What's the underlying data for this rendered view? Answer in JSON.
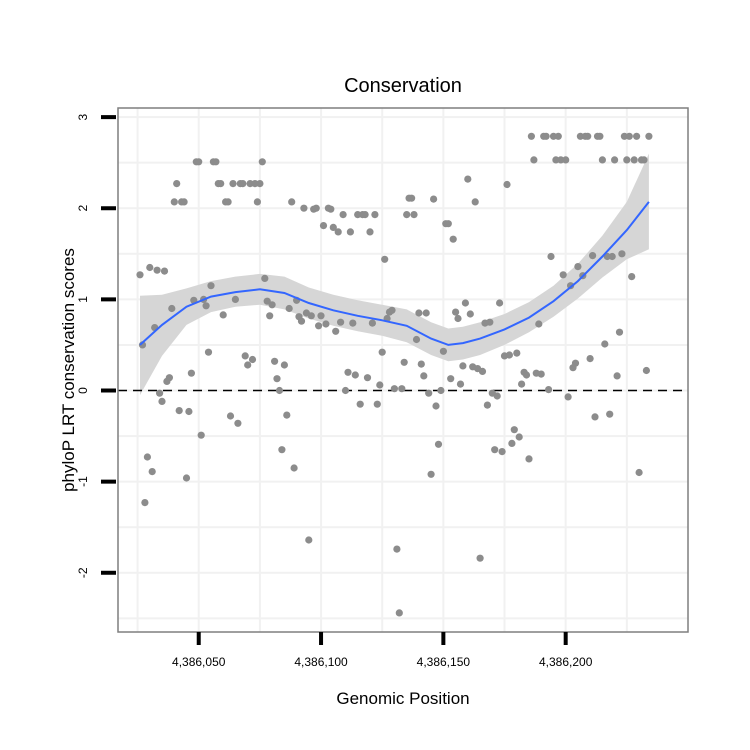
{
  "chart_data": {
    "type": "scatter",
    "title": "Conservation",
    "xlabel": "Genomic Position",
    "ylabel": "phyloP LRT conservation scores",
    "xlim": [
      4386017,
      4386250
    ],
    "ylim": [
      -2.65,
      3.1
    ],
    "x_ticks": [
      4386050,
      4386100,
      4386150,
      4386200
    ],
    "x_tick_labels": [
      "4,386,050",
      "4,386,100",
      "4,386,150",
      "4,386,200"
    ],
    "y_ticks": [
      -2,
      -1,
      0,
      1,
      2,
      3
    ],
    "y_tick_labels": [
      "-2",
      "-1",
      "0",
      "1",
      "2",
      "3"
    ],
    "grid": true,
    "reference_line": {
      "y": 0,
      "style": "dashed",
      "color": "#000000"
    },
    "colors": {
      "points": "#8c8c8c",
      "smooth_line": "#3366ff",
      "ribbon": "#d6d6d6",
      "grid": "#f1f1f1",
      "panel_border": "#7f7f7f"
    },
    "points": [
      [
        4386026,
        1.27
      ],
      [
        4386027,
        0.5
      ],
      [
        4386028,
        -1.23
      ],
      [
        4386029,
        -0.73
      ],
      [
        4386030,
        1.35
      ],
      [
        4386031,
        -0.89
      ],
      [
        4386032,
        0.69
      ],
      [
        4386033,
        1.32
      ],
      [
        4386034,
        -0.03
      ],
      [
        4386035,
        -0.12
      ],
      [
        4386036,
        1.31
      ],
      [
        4386037,
        0.1
      ],
      [
        4386038,
        0.14
      ],
      [
        4386039,
        0.9
      ],
      [
        4386040,
        2.07
      ],
      [
        4386041,
        2.27
      ],
      [
        4386042,
        -0.22
      ],
      [
        4386043,
        2.07
      ],
      [
        4386044,
        2.07
      ],
      [
        4386045,
        -0.96
      ],
      [
        4386046,
        -0.23
      ],
      [
        4386047,
        0.19
      ],
      [
        4386048,
        0.99
      ],
      [
        4386049,
        2.51
      ],
      [
        4386050,
        2.51
      ],
      [
        4386051,
        -0.49
      ],
      [
        4386052,
        1.0
      ],
      [
        4386053,
        0.93
      ],
      [
        4386054,
        0.42
      ],
      [
        4386055,
        1.15
      ],
      [
        4386056,
        2.51
      ],
      [
        4386057,
        2.51
      ],
      [
        4386058,
        2.27
      ],
      [
        4386059,
        2.27
      ],
      [
        4386060,
        0.83
      ],
      [
        4386061,
        2.07
      ],
      [
        4386062,
        2.07
      ],
      [
        4386063,
        -0.28
      ],
      [
        4386064,
        2.27
      ],
      [
        4386065,
        1.0
      ],
      [
        4386066,
        -0.36
      ],
      [
        4386067,
        2.27
      ],
      [
        4386068,
        2.27
      ],
      [
        4386069,
        0.38
      ],
      [
        4386070,
        0.28
      ],
      [
        4386071,
        2.27
      ],
      [
        4386072,
        0.34
      ],
      [
        4386073,
        2.27
      ],
      [
        4386074,
        2.07
      ],
      [
        4386075,
        2.27
      ],
      [
        4386076,
        2.51
      ],
      [
        4386077,
        1.23
      ],
      [
        4386078,
        0.98
      ],
      [
        4386079,
        0.82
      ],
      [
        4386080,
        0.94
      ],
      [
        4386081,
        0.32
      ],
      [
        4386082,
        0.13
      ],
      [
        4386083,
        0.0
      ],
      [
        4386084,
        -0.65
      ],
      [
        4386085,
        0.28
      ],
      [
        4386086,
        -0.27
      ],
      [
        4386087,
        0.9
      ],
      [
        4386088,
        2.07
      ],
      [
        4386089,
        -0.85
      ],
      [
        4386090,
        0.99
      ],
      [
        4386091,
        0.81
      ],
      [
        4386092,
        0.76
      ],
      [
        4386093,
        2.0
      ],
      [
        4386094,
        0.85
      ],
      [
        4386095,
        -1.64
      ],
      [
        4386096,
        0.82
      ],
      [
        4386097,
        1.99
      ],
      [
        4386098,
        2.0
      ],
      [
        4386099,
        0.71
      ],
      [
        4386100,
        0.82
      ],
      [
        4386101,
        1.81
      ],
      [
        4386102,
        0.73
      ],
      [
        4386103,
        2.0
      ],
      [
        4386104,
        1.99
      ],
      [
        4386105,
        1.79
      ],
      [
        4386106,
        0.65
      ],
      [
        4386107,
        1.74
      ],
      [
        4386108,
        0.75
      ],
      [
        4386109,
        1.93
      ],
      [
        4386110,
        0.0
      ],
      [
        4386111,
        0.2
      ],
      [
        4386112,
        1.74
      ],
      [
        4386113,
        0.74
      ],
      [
        4386114,
        0.17
      ],
      [
        4386115,
        1.93
      ],
      [
        4386116,
        -0.15
      ],
      [
        4386117,
        1.93
      ],
      [
        4386118,
        1.93
      ],
      [
        4386119,
        0.14
      ],
      [
        4386120,
        1.74
      ],
      [
        4386121,
        0.74
      ],
      [
        4386122,
        1.93
      ],
      [
        4386123,
        -0.15
      ],
      [
        4386124,
        0.06
      ],
      [
        4386125,
        0.42
      ],
      [
        4386126,
        1.44
      ],
      [
        4386127,
        0.79
      ],
      [
        4386128,
        0.86
      ],
      [
        4386129,
        0.88
      ],
      [
        4386130,
        0.02
      ],
      [
        4386131,
        -1.74
      ],
      [
        4386132,
        -2.44
      ],
      [
        4386133,
        0.02
      ],
      [
        4386134,
        0.31
      ],
      [
        4386135,
        1.93
      ],
      [
        4386136,
        2.11
      ],
      [
        4386137,
        2.11
      ],
      [
        4386138,
        1.93
      ],
      [
        4386139,
        0.56
      ],
      [
        4386140,
        0.85
      ],
      [
        4386141,
        0.29
      ],
      [
        4386142,
        0.16
      ],
      [
        4386143,
        0.85
      ],
      [
        4386144,
        -0.03
      ],
      [
        4386145,
        -0.92
      ],
      [
        4386146,
        2.1
      ],
      [
        4386147,
        -0.17
      ],
      [
        4386148,
        -0.59
      ],
      [
        4386149,
        0.0
      ],
      [
        4386150,
        0.43
      ],
      [
        4386151,
        1.83
      ],
      [
        4386152,
        1.83
      ],
      [
        4386153,
        0.13
      ],
      [
        4386154,
        1.66
      ],
      [
        4386155,
        0.86
      ],
      [
        4386156,
        0.79
      ],
      [
        4386157,
        0.07
      ],
      [
        4386158,
        0.27
      ],
      [
        4386159,
        0.96
      ],
      [
        4386160,
        2.32
      ],
      [
        4386161,
        0.84
      ],
      [
        4386162,
        0.26
      ],
      [
        4386163,
        2.07
      ],
      [
        4386164,
        0.24
      ],
      [
        4386165,
        -1.84
      ],
      [
        4386166,
        0.21
      ],
      [
        4386167,
        0.74
      ],
      [
        4386168,
        -0.16
      ],
      [
        4386169,
        0.75
      ],
      [
        4386170,
        -0.03
      ],
      [
        4386171,
        -0.65
      ],
      [
        4386172,
        -0.06
      ],
      [
        4386173,
        0.96
      ],
      [
        4386174,
        -0.67
      ],
      [
        4386175,
        0.38
      ],
      [
        4386176,
        2.26
      ],
      [
        4386177,
        0.39
      ],
      [
        4386178,
        -0.58
      ],
      [
        4386179,
        -0.43
      ],
      [
        4386180,
        0.41
      ],
      [
        4386181,
        -0.51
      ],
      [
        4386182,
        0.07
      ],
      [
        4386183,
        0.2
      ],
      [
        4386184,
        0.17
      ],
      [
        4386185,
        -0.75
      ],
      [
        4386186,
        2.79
      ],
      [
        4386187,
        2.53
      ],
      [
        4386188,
        0.19
      ],
      [
        4386189,
        0.73
      ],
      [
        4386190,
        0.18
      ],
      [
        4386191,
        2.79
      ],
      [
        4386192,
        2.79
      ],
      [
        4386193,
        0.01
      ],
      [
        4386194,
        1.47
      ],
      [
        4386195,
        2.79
      ],
      [
        4386196,
        2.53
      ],
      [
        4386197,
        2.79
      ],
      [
        4386198,
        2.53
      ],
      [
        4386199,
        1.27
      ],
      [
        4386200,
        2.53
      ],
      [
        4386201,
        -0.07
      ],
      [
        4386202,
        1.15
      ],
      [
        4386203,
        0.25
      ],
      [
        4386204,
        0.3
      ],
      [
        4386205,
        1.36
      ],
      [
        4386206,
        2.79
      ],
      [
        4386207,
        1.26
      ],
      [
        4386208,
        2.79
      ],
      [
        4386209,
        2.79
      ],
      [
        4386210,
        0.35
      ],
      [
        4386211,
        1.48
      ],
      [
        4386212,
        -0.29
      ],
      [
        4386213,
        2.79
      ],
      [
        4386214,
        2.79
      ],
      [
        4386215,
        2.53
      ],
      [
        4386216,
        0.51
      ],
      [
        4386217,
        1.47
      ],
      [
        4386218,
        -0.26
      ],
      [
        4386219,
        1.47
      ],
      [
        4386220,
        2.53
      ],
      [
        4386221,
        0.16
      ],
      [
        4386222,
        0.64
      ],
      [
        4386223,
        1.5
      ],
      [
        4386224,
        2.79
      ],
      [
        4386225,
        2.53
      ],
      [
        4386226,
        2.79
      ],
      [
        4386227,
        1.25
      ],
      [
        4386228,
        2.53
      ],
      [
        4386229,
        2.79
      ],
      [
        4386230,
        -0.9
      ],
      [
        4386231,
        2.53
      ],
      [
        4386232,
        2.53
      ],
      [
        4386233,
        0.22
      ],
      [
        4386234,
        2.79
      ]
    ],
    "smooth": [
      [
        4386026,
        0.5
      ],
      [
        4386035,
        0.72
      ],
      [
        4386045,
        0.92
      ],
      [
        4386055,
        1.03
      ],
      [
        4386065,
        1.08
      ],
      [
        4386075,
        1.11
      ],
      [
        4386085,
        1.07
      ],
      [
        4386095,
        0.96
      ],
      [
        4386105,
        0.88
      ],
      [
        4386115,
        0.82
      ],
      [
        4386125,
        0.77
      ],
      [
        4386135,
        0.71
      ],
      [
        4386145,
        0.57
      ],
      [
        4386152,
        0.5
      ],
      [
        4386158,
        0.52
      ],
      [
        4386165,
        0.57
      ],
      [
        4386175,
        0.67
      ],
      [
        4386185,
        0.8
      ],
      [
        4386195,
        0.98
      ],
      [
        4386205,
        1.2
      ],
      [
        4386215,
        1.47
      ],
      [
        4386225,
        1.76
      ],
      [
        4386234,
        2.07
      ]
    ],
    "ribbon_lower": [
      [
        4386026,
        -0.05
      ],
      [
        4386035,
        0.38
      ],
      [
        4386045,
        0.72
      ],
      [
        4386055,
        0.86
      ],
      [
        4386065,
        0.92
      ],
      [
        4386075,
        0.94
      ],
      [
        4386085,
        0.89
      ],
      [
        4386095,
        0.79
      ],
      [
        4386105,
        0.71
      ],
      [
        4386115,
        0.65
      ],
      [
        4386125,
        0.6
      ],
      [
        4386135,
        0.53
      ],
      [
        4386145,
        0.39
      ],
      [
        4386152,
        0.32
      ],
      [
        4386158,
        0.34
      ],
      [
        4386165,
        0.39
      ],
      [
        4386175,
        0.5
      ],
      [
        4386185,
        0.64
      ],
      [
        4386195,
        0.81
      ],
      [
        4386205,
        1.01
      ],
      [
        4386215,
        1.24
      ],
      [
        4386225,
        1.44
      ],
      [
        4386234,
        1.55
      ]
    ],
    "ribbon_upper": [
      [
        4386026,
        1.04
      ],
      [
        4386035,
        1.05
      ],
      [
        4386045,
        1.12
      ],
      [
        4386055,
        1.2
      ],
      [
        4386065,
        1.25
      ],
      [
        4386075,
        1.28
      ],
      [
        4386085,
        1.25
      ],
      [
        4386095,
        1.13
      ],
      [
        4386105,
        1.05
      ],
      [
        4386115,
        0.99
      ],
      [
        4386125,
        0.94
      ],
      [
        4386135,
        0.89
      ],
      [
        4386145,
        0.75
      ],
      [
        4386152,
        0.68
      ],
      [
        4386158,
        0.7
      ],
      [
        4386165,
        0.75
      ],
      [
        4386175,
        0.84
      ],
      [
        4386185,
        0.97
      ],
      [
        4386195,
        1.15
      ],
      [
        4386205,
        1.39
      ],
      [
        4386215,
        1.7
      ],
      [
        4386225,
        2.07
      ],
      [
        4386234,
        2.6
      ]
    ]
  }
}
